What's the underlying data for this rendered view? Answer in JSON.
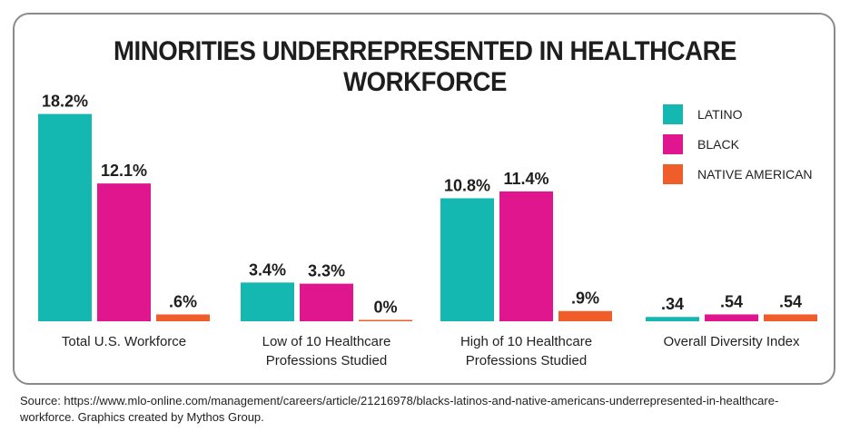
{
  "title": "MINORITIES UNDERREPRESENTED IN HEALTHCARE WORKFORCE",
  "source_text": "Source: https://www.mlo-online.com/management/careers/article/21216978/blacks-latinos-and-native-americans-underrepresented-in-healthcare-workforce. Graphics created by Mythos Group.",
  "colors": {
    "latino": "#15b8b0",
    "black": "#e0168f",
    "native_american": "#ef5d2a",
    "frame": "#8a8a8a"
  },
  "chart_data": {
    "type": "bar",
    "title": "MINORITIES UNDERREPRESENTED IN HEALTHCARE WORKFORCE",
    "categories": [
      "Total U.S.  Workforce",
      "Low of 10 Healthcare\nProfessions Studied",
      "High of 10 Healthcare\nProfessions Studied",
      "Overall Diversity Index"
    ],
    "series": [
      {
        "name": "LATINO",
        "color": "#15b8b0",
        "values": [
          18.2,
          3.4,
          10.8,
          0.34
        ],
        "labels": [
          "18.2%",
          "3.4%",
          "10.8%",
          ".34"
        ]
      },
      {
        "name": "BLACK",
        "color": "#e0168f",
        "values": [
          12.1,
          3.3,
          11.4,
          0.54
        ],
        "labels": [
          "12.1%",
          "3.3%",
          "11.4%",
          ".54"
        ]
      },
      {
        "name": "NATIVE AMERICAN",
        "color": "#ef5d2a",
        "values": [
          0.6,
          0,
          0.9,
          0.54
        ],
        "labels": [
          ".6%",
          "0%",
          ".9%",
          ".54"
        ]
      }
    ],
    "legend_position": "top-right",
    "grid": false
  }
}
